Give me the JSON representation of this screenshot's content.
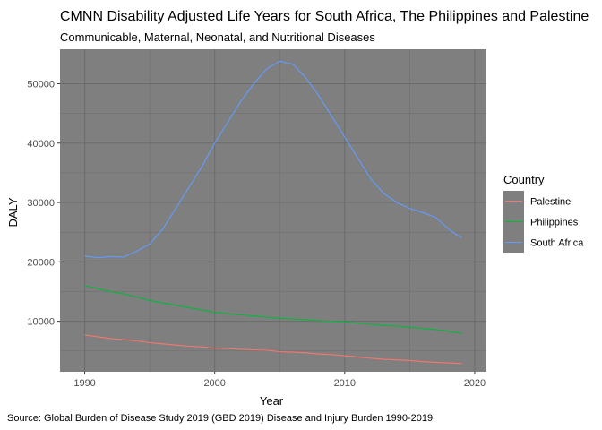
{
  "chart_data": {
    "type": "line",
    "title": "CMNN Disability Adjusted Life Years for South Africa, The Philippines and Palestine",
    "subtitle": "Communicable, Maternal, Neonatal, and Nutritional Diseases",
    "xlabel": "Year",
    "ylabel": "DALY",
    "caption": "Source: Global Burden of Disease Study 2019 (GBD 2019) Disease and Injury Burden 1990-2019",
    "xlim": [
      1988.1,
      2020.9
    ],
    "ylim": [
      1500,
      55800
    ],
    "x_ticks": [
      1990,
      2000,
      2010,
      2020
    ],
    "y_ticks": [
      10000,
      20000,
      30000,
      40000,
      50000
    ],
    "grid": true,
    "legend": {
      "title": "Country",
      "position": "right"
    },
    "panel_background": "#7f7f7f",
    "grid_color": "#6b6b6b",
    "x": [
      1990,
      1991,
      1992,
      1993,
      1994,
      1995,
      1996,
      1997,
      1998,
      1999,
      2000,
      2001,
      2002,
      2003,
      2004,
      2005,
      2006,
      2007,
      2008,
      2009,
      2010,
      2011,
      2012,
      2013,
      2014,
      2015,
      2016,
      2017,
      2018,
      2019
    ],
    "series": [
      {
        "name": "Palestine",
        "color": "#f8766d",
        "values": [
          7700,
          7400,
          7100,
          6900,
          6700,
          6400,
          6200,
          6000,
          5800,
          5700,
          5500,
          5400,
          5300,
          5200,
          5100,
          4900,
          4800,
          4700,
          4500,
          4400,
          4200,
          4000,
          3800,
          3600,
          3500,
          3400,
          3200,
          3100,
          3000,
          2900
        ]
      },
      {
        "name": "Philippines",
        "color": "#00ba38",
        "values": [
          16000,
          15500,
          15000,
          14600,
          14100,
          13500,
          13100,
          12700,
          12300,
          11900,
          11500,
          11300,
          11100,
          10900,
          10700,
          10500,
          10400,
          10300,
          10100,
          10000,
          9900,
          9700,
          9500,
          9300,
          9200,
          9000,
          8800,
          8600,
          8300,
          8000
        ]
      },
      {
        "name": "South Africa",
        "color": "#619cff",
        "values": [
          21000,
          20700,
          20900,
          20800,
          21800,
          23000,
          25500,
          29000,
          32500,
          36000,
          40000,
          43500,
          47000,
          50000,
          52500,
          53800,
          53300,
          51000,
          48000,
          44500,
          41000,
          37500,
          34000,
          31500,
          30000,
          29000,
          28300,
          27500,
          25500,
          24000
        ]
      }
    ]
  }
}
